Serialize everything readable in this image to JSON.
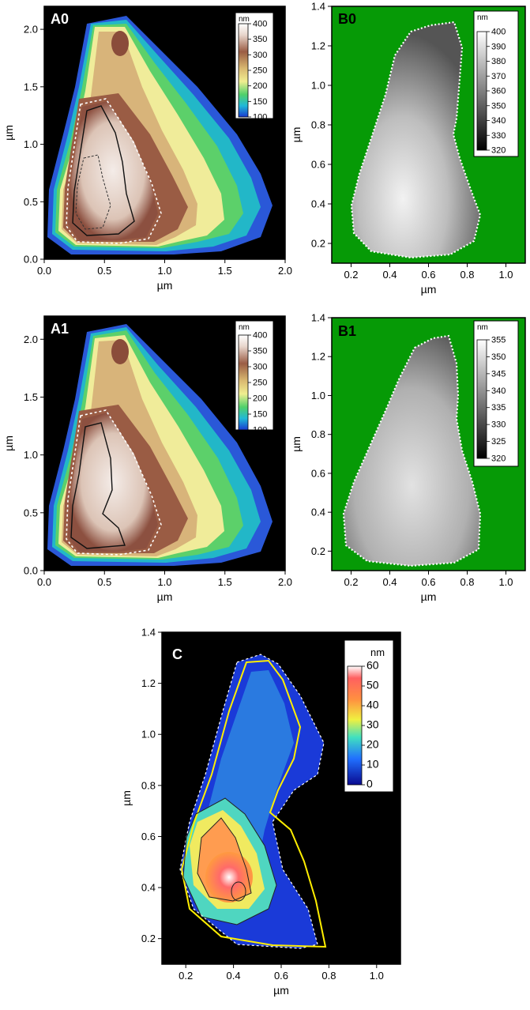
{
  "colors": {
    "frame": "#000000",
    "green_background": "#069a06",
    "contour_dashed": "#ffffff",
    "contour_solid": "#111111",
    "yellow_outline": "#ffee00"
  },
  "chart_data": [
    {
      "id": "A0",
      "type": "heatmap",
      "panel_label": "A0",
      "xlabel": "µm",
      "ylabel": "µm",
      "xlim": [
        0.0,
        2.0
      ],
      "ylim": [
        0.0,
        2.2
      ],
      "xticks": [
        "0.0",
        "0.5",
        "1.0",
        "1.5",
        "2.0"
      ],
      "yticks": [
        "0.0",
        "0.5",
        "1.0",
        "1.5",
        "2.0"
      ],
      "colorbar": {
        "unit": "nm",
        "ticks": [
          "400",
          "350",
          "300",
          "250",
          "200",
          "150",
          "100"
        ],
        "min": 100,
        "max": 400,
        "colormap": "terrain"
      },
      "background": "black"
    },
    {
      "id": "B0",
      "type": "heatmap",
      "panel_label": "B0",
      "xlabel": "µm",
      "ylabel": "µm",
      "xlim": [
        0.1,
        1.1
      ],
      "ylim": [
        0.1,
        1.4
      ],
      "xticks": [
        "0.2",
        "0.4",
        "0.6",
        "0.8",
        "1.0"
      ],
      "yticks": [
        "0.2",
        "0.4",
        "0.6",
        "0.8",
        "1.0",
        "1.2",
        "1.4"
      ],
      "colorbar": {
        "unit": "nm",
        "ticks": [
          "400",
          "390",
          "380",
          "370",
          "360",
          "350",
          "340",
          "330",
          "320"
        ],
        "min": 320,
        "max": 400,
        "colormap": "grayscale"
      },
      "background": "green"
    },
    {
      "id": "A1",
      "type": "heatmap",
      "panel_label": "A1",
      "xlabel": "µm",
      "ylabel": "µm",
      "xlim": [
        0.0,
        2.0
      ],
      "ylim": [
        0.0,
        2.2
      ],
      "xticks": [
        "0.0",
        "0.5",
        "1.0",
        "1.5",
        "2.0"
      ],
      "yticks": [
        "0.0",
        "0.5",
        "1.0",
        "1.5",
        "2.0"
      ],
      "colorbar": {
        "unit": "nm",
        "ticks": [
          "400",
          "350",
          "300",
          "250",
          "200",
          "150",
          "100"
        ],
        "min": 100,
        "max": 400,
        "colormap": "terrain"
      },
      "background": "black"
    },
    {
      "id": "B1",
      "type": "heatmap",
      "panel_label": "B1",
      "xlabel": "µm",
      "ylabel": "µm",
      "xlim": [
        0.1,
        1.1
      ],
      "ylim": [
        0.1,
        1.4
      ],
      "xticks": [
        "0.2",
        "0.4",
        "0.6",
        "0.8",
        "1.0"
      ],
      "yticks": [
        "0.2",
        "0.4",
        "0.6",
        "0.8",
        "1.0",
        "1.2",
        "1.4"
      ],
      "colorbar": {
        "unit": "nm",
        "ticks": [
          "355",
          "350",
          "345",
          "340",
          "335",
          "330",
          "325",
          "320"
        ],
        "min": 320,
        "max": 355,
        "colormap": "grayscale"
      },
      "background": "green"
    },
    {
      "id": "C",
      "type": "heatmap",
      "panel_label": "C",
      "xlabel": "µm",
      "ylabel": "µm",
      "xlim": [
        0.1,
        1.1
      ],
      "ylim": [
        0.1,
        1.4
      ],
      "xticks": [
        "0.2",
        "0.4",
        "0.6",
        "0.8",
        "1.0"
      ],
      "yticks": [
        "0.2",
        "0.4",
        "0.6",
        "0.8",
        "1.0",
        "1.2",
        "1.4"
      ],
      "colorbar": {
        "unit": "nm",
        "ticks": [
          "60",
          "50",
          "40",
          "30",
          "20",
          "10",
          "0"
        ],
        "min": 0,
        "max": 60,
        "colormap": "rainbow"
      },
      "background": "black"
    }
  ]
}
